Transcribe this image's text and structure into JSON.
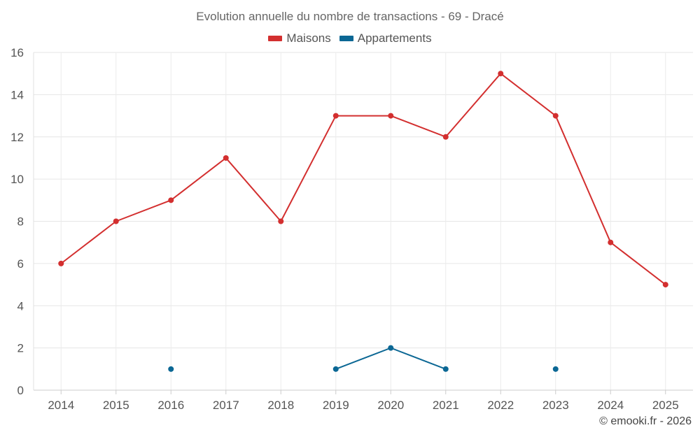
{
  "chart_data": {
    "type": "line",
    "title": "Evolution annuelle du nombre de transactions - 69 - Dracé",
    "categories": [
      "2014",
      "2015",
      "2016",
      "2017",
      "2018",
      "2019",
      "2020",
      "2021",
      "2022",
      "2023",
      "2024",
      "2025"
    ],
    "series": [
      {
        "name": "Maisons",
        "color": "#d32f2f",
        "values": [
          6,
          8,
          9,
          11,
          8,
          13,
          13,
          12,
          15,
          13,
          7,
          5
        ]
      },
      {
        "name": "Appartements",
        "color": "#0b6794",
        "values": [
          null,
          null,
          1,
          null,
          null,
          1,
          2,
          1,
          null,
          1,
          null,
          null
        ]
      }
    ],
    "xlabel": "",
    "ylabel": "",
    "ylim": [
      0,
      16
    ],
    "yticks": [
      0,
      2,
      4,
      6,
      8,
      10,
      12,
      14,
      16
    ],
    "grid": true,
    "legend_position": "top-center"
  },
  "legend": {
    "maisons_label": "Maisons",
    "appartements_label": "Appartements",
    "maisons_color": "#d32f2f",
    "appartements_color": "#0b6794"
  },
  "credit": "© emooki.fr - 2026"
}
